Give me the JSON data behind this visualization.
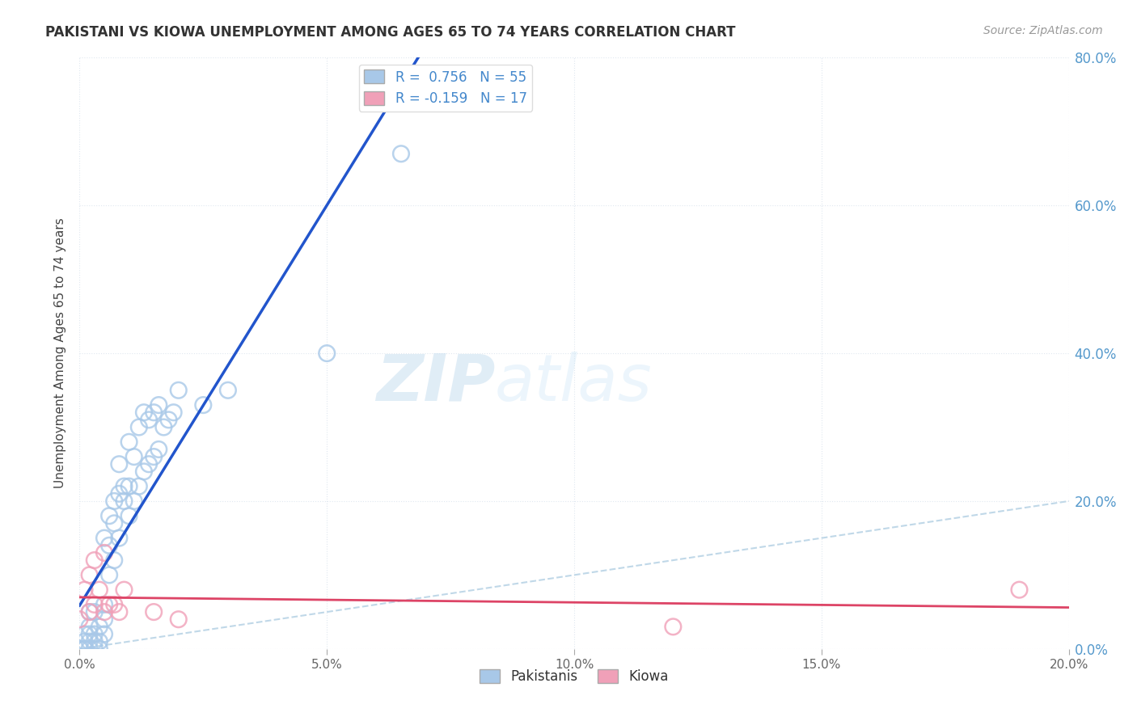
{
  "title": "PAKISTANI VS KIOWA UNEMPLOYMENT AMONG AGES 65 TO 74 YEARS CORRELATION CHART",
  "source": "Source: ZipAtlas.com",
  "ylabel": "Unemployment Among Ages 65 to 74 years",
  "xlim": [
    0.0,
    0.2
  ],
  "ylim": [
    0.0,
    0.8
  ],
  "xticks": [
    0.0,
    0.05,
    0.1,
    0.15,
    0.2
  ],
  "yticks": [
    0.0,
    0.2,
    0.4,
    0.6,
    0.8
  ],
  "xtick_labels": [
    "0.0%",
    "5.0%",
    "10.0%",
    "15.0%",
    "20.0%"
  ],
  "ytick_labels": [
    "0.0%",
    "20.0%",
    "40.0%",
    "60.0%",
    "80.0%"
  ],
  "pakistani_color": "#a8c8e8",
  "kiowa_color": "#f0a0b8",
  "pakistani_R": 0.756,
  "pakistani_N": 55,
  "kiowa_R": -0.159,
  "kiowa_N": 17,
  "pakistani_line_color": "#2255cc",
  "kiowa_line_color": "#dd4466",
  "diagonal_line_color": "#c0d8e8",
  "watermark_zip": "ZIP",
  "watermark_atlas": "atlas",
  "background_color": "#ffffff",
  "grid_color": "#e0e8f0",
  "pakistani_x": [
    0.0,
    0.001,
    0.001,
    0.001,
    0.001,
    0.002,
    0.002,
    0.002,
    0.002,
    0.002,
    0.003,
    0.003,
    0.003,
    0.003,
    0.004,
    0.004,
    0.004,
    0.005,
    0.005,
    0.005,
    0.005,
    0.006,
    0.006,
    0.006,
    0.007,
    0.007,
    0.007,
    0.008,
    0.008,
    0.008,
    0.009,
    0.009,
    0.01,
    0.01,
    0.01,
    0.011,
    0.011,
    0.012,
    0.012,
    0.013,
    0.013,
    0.014,
    0.014,
    0.015,
    0.015,
    0.016,
    0.016,
    0.017,
    0.018,
    0.019,
    0.02,
    0.025,
    0.03,
    0.05,
    0.065
  ],
  "pakistani_y": [
    0.0,
    0.0,
    0.0,
    0.01,
    0.02,
    0.0,
    0.01,
    0.02,
    0.03,
    0.05,
    0.0,
    0.01,
    0.02,
    0.05,
    0.0,
    0.01,
    0.03,
    0.02,
    0.04,
    0.06,
    0.15,
    0.14,
    0.1,
    0.18,
    0.12,
    0.17,
    0.2,
    0.15,
    0.21,
    0.25,
    0.2,
    0.22,
    0.18,
    0.22,
    0.28,
    0.2,
    0.26,
    0.22,
    0.3,
    0.24,
    0.32,
    0.25,
    0.31,
    0.26,
    0.32,
    0.27,
    0.33,
    0.3,
    0.31,
    0.32,
    0.35,
    0.33,
    0.35,
    0.4,
    0.67
  ],
  "kiowa_x": [
    0.0,
    0.001,
    0.002,
    0.002,
    0.003,
    0.003,
    0.004,
    0.005,
    0.005,
    0.006,
    0.007,
    0.008,
    0.009,
    0.015,
    0.02,
    0.12,
    0.19
  ],
  "kiowa_y": [
    0.04,
    0.08,
    0.05,
    0.1,
    0.06,
    0.12,
    0.08,
    0.05,
    0.13,
    0.06,
    0.06,
    0.05,
    0.08,
    0.05,
    0.04,
    0.03,
    0.08
  ]
}
